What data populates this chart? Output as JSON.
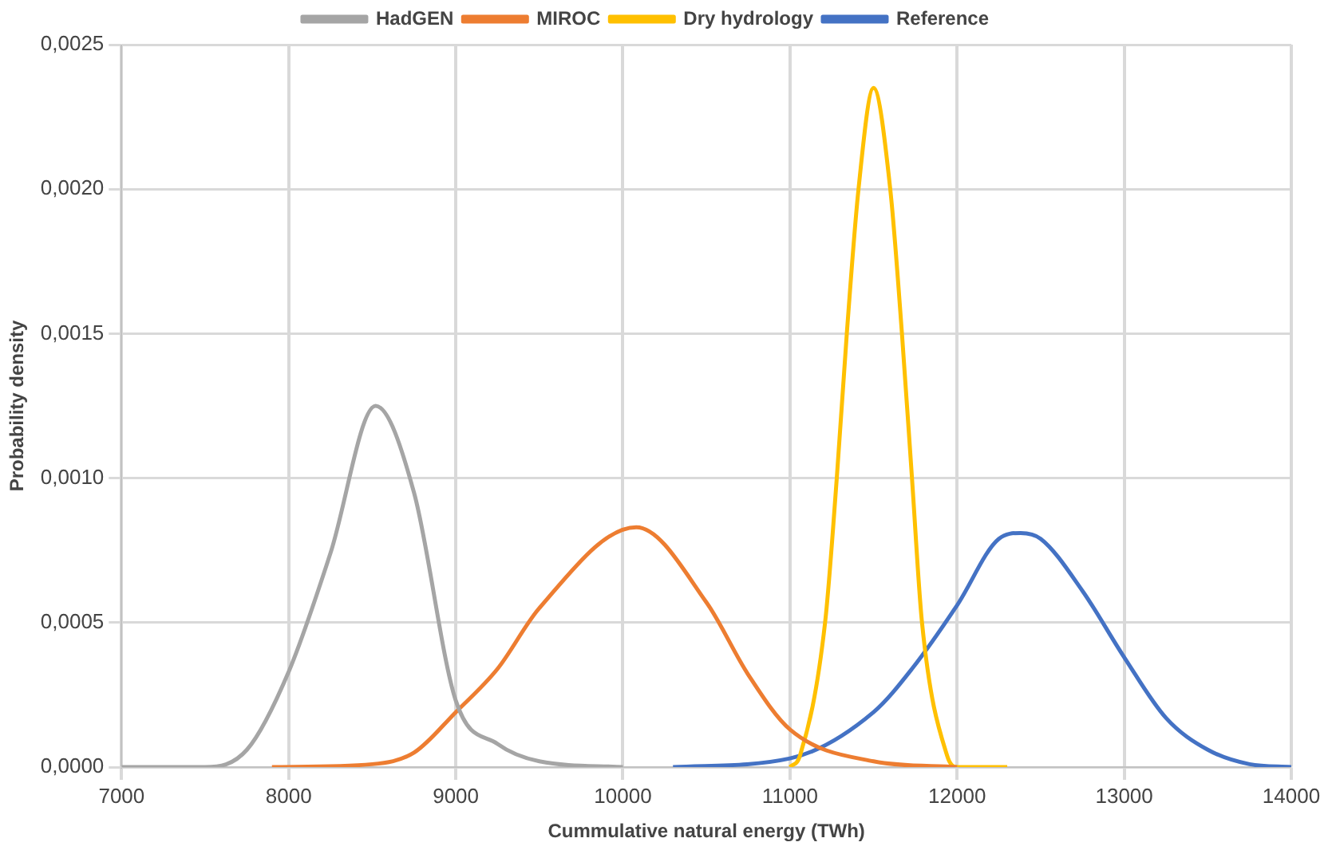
{
  "chart_data": {
    "type": "line",
    "xlabel": "Cummulative natural energy (TWh)",
    "ylabel": "Probability density",
    "xlim": [
      7000,
      14000
    ],
    "xticks": [
      7000,
      8000,
      9000,
      10000,
      11000,
      12000,
      13000,
      14000
    ],
    "ylim": [
      0,
      0.0025
    ],
    "yticks": [
      {
        "value": 0,
        "label": "0,0000"
      },
      {
        "value": 0.0005,
        "label": "0,0005"
      },
      {
        "value": 0.001,
        "label": "0,0010"
      },
      {
        "value": 0.0015,
        "label": "0,0015"
      },
      {
        "value": 0.002,
        "label": "0,0020"
      },
      {
        "value": 0.0025,
        "label": "0,0025"
      }
    ],
    "grid": true,
    "legend": "top",
    "marker": "none",
    "line_style": "solid",
    "series": [
      {
        "name": "HadGEN",
        "color": "#a5a5a5",
        "x": [
          7000,
          7500,
          7750,
          8000,
          8250,
          8520,
          8750,
          9000,
          9250,
          9500,
          10000
        ],
        "values": [
          0,
          0,
          6e-05,
          0.00033,
          0.00074,
          0.00125,
          0.00095,
          0.00023,
          8e-05,
          2e-05,
          0
        ]
      },
      {
        "name": "MIROC",
        "color": "#ed7d31",
        "x": [
          7900,
          8500,
          8750,
          9000,
          9250,
          9500,
          10080,
          10500,
          10750,
          11000,
          11500,
          12000
        ],
        "values": [
          0,
          1e-05,
          5e-05,
          0.00019,
          0.00034,
          0.00055,
          0.00083,
          0.00057,
          0.00032,
          0.00013,
          2e-05,
          0
        ]
      },
      {
        "name": "Dry hydrology",
        "color": "#ffc000",
        "x": [
          11000,
          11060,
          11210,
          11280,
          11340,
          11410,
          11500,
          11600,
          11670,
          11730,
          11790,
          11940,
          12000,
          12300
        ],
        "values": [
          0,
          4e-05,
          0.0005,
          0.001,
          0.0015,
          0.002,
          0.00235,
          0.002,
          0.0015,
          0.001,
          0.0005,
          4e-05,
          0,
          0
        ]
      },
      {
        "name": "Reference",
        "color": "#4472c4",
        "x": [
          10300,
          11000,
          11500,
          11730,
          12000,
          12250,
          12380,
          12500,
          12750,
          13000,
          13250,
          13500,
          13750,
          14000
        ],
        "values": [
          0,
          3e-05,
          0.00019,
          0.00034,
          0.00056,
          0.00079,
          0.00081,
          0.00079,
          0.00061,
          0.00038,
          0.00017,
          6e-05,
          1e-05,
          0
        ]
      }
    ]
  }
}
